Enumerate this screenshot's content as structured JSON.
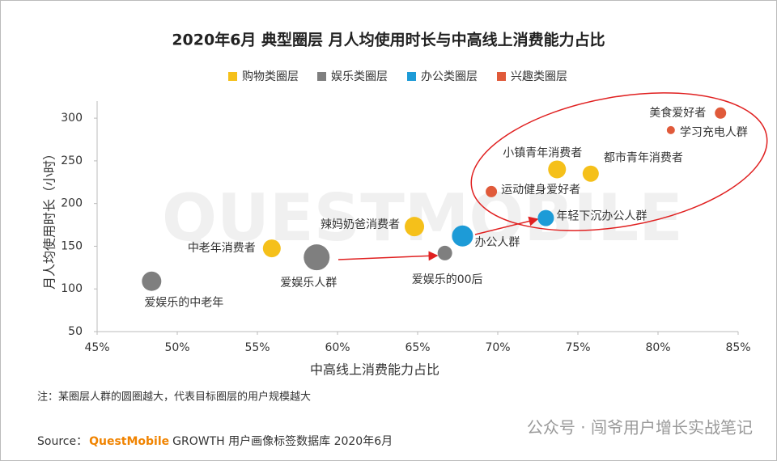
{
  "chart_data": {
    "type": "scatter",
    "title": "2020年6月 典型圈层 月人均使用时长与中高线上消费能力占比",
    "x_label": "中高线上消费能力占比",
    "y_label": "月人均使用时长（小时）",
    "xlim": [
      45,
      85
    ],
    "ylim": [
      50,
      320
    ],
    "xticks": [
      {
        "value": 45,
        "label": "45%"
      },
      {
        "value": 50,
        "label": "50%"
      },
      {
        "value": 55,
        "label": "55%"
      },
      {
        "value": 60,
        "label": "60%"
      },
      {
        "value": 65,
        "label": "65%"
      },
      {
        "value": 70,
        "label": "70%"
      },
      {
        "value": 75,
        "label": "75%"
      },
      {
        "value": 80,
        "label": "80%"
      },
      {
        "value": 85,
        "label": "85%"
      }
    ],
    "yticks": [
      50,
      100,
      150,
      200,
      250,
      300
    ],
    "series": [
      {
        "name": "购物类圈层",
        "color": "#f5c01a",
        "x": [
          55.9,
          64.8,
          73.7,
          75.8
        ],
        "values": [
          147.5,
          173,
          240,
          235
        ],
        "sizes": [
          11,
          12,
          11,
          10
        ],
        "labels": [
          "中老年消费者",
          "辣妈奶爸消费者",
          "小镇青年消费者",
          "都市青年消费者"
        ]
      },
      {
        "name": "娱乐类圈层",
        "color": "#7f7f7f",
        "x": [
          48.4,
          58.7,
          66.7
        ],
        "values": [
          109,
          137,
          142
        ],
        "sizes": [
          12,
          16,
          9
        ],
        "labels": [
          "爱娱乐的中老年",
          "爱娱乐人群",
          "爱娱乐的00后"
        ]
      },
      {
        "name": "办公类圈层",
        "color": "#1d9bd7",
        "x": [
          67.8,
          73
        ],
        "values": [
          162,
          183
        ],
        "sizes": [
          13,
          10
        ],
        "labels": [
          "办公人群",
          "年轻下沉办公人群"
        ]
      },
      {
        "name": "兴趣类圈层",
        "color": "#e05a3a",
        "x": [
          83.9,
          80.8,
          69.6
        ],
        "values": [
          306,
          286,
          214
        ],
        "sizes": [
          7,
          5,
          7
        ],
        "labels": [
          "美食爱好者",
          "学习充电人群",
          "运动健身爱好者"
        ]
      }
    ],
    "note": "注：某圈层人群的圆圈越大，代表目标圈层的用户规模越大",
    "source_prefix": "Source：",
    "source_brand": "QuestMobile",
    "source_rest": "GROWTH 用户画像标签数据库 2020年6月",
    "watermark": "QUESTMOBILE",
    "credit": "公众号 · 闯爷用户增长实战笔记"
  }
}
